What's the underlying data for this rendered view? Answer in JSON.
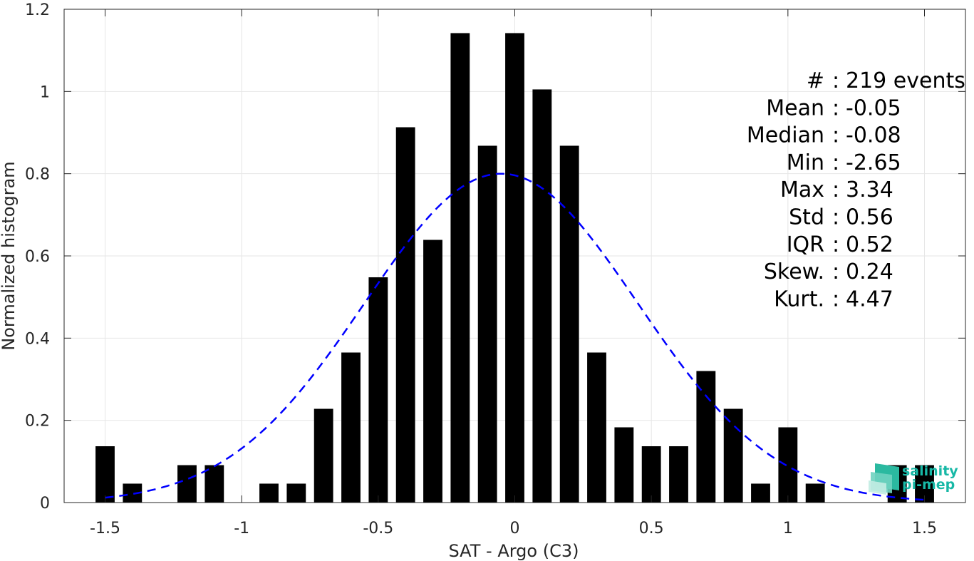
{
  "chart_data": {
    "type": "bar",
    "xlabel": "SAT - Argo (C3)",
    "ylabel": "Normalized histogram",
    "xlim": [
      -1.65,
      1.65
    ],
    "ylim": [
      0,
      1.2
    ],
    "xticks": [
      -1.5,
      -1,
      -0.5,
      0,
      0.5,
      1,
      1.5
    ],
    "xtick_labels": [
      "-1.5",
      "-1",
      "-0.5",
      "0",
      "0.5",
      "1",
      "1.5"
    ],
    "yticks": [
      0,
      0.2,
      0.4,
      0.6,
      0.8,
      1,
      1.2
    ],
    "ytick_labels": [
      "0",
      "0.2",
      "0.4",
      "0.6",
      "0.8",
      "1",
      "1.2"
    ],
    "grid": true,
    "bin_width": 0.07,
    "bins": [
      {
        "x": -1.5,
        "value": 0.137
      },
      {
        "x": -1.4,
        "value": 0.046
      },
      {
        "x": -1.2,
        "value": 0.091
      },
      {
        "x": -1.1,
        "value": 0.091
      },
      {
        "x": -0.9,
        "value": 0.046
      },
      {
        "x": -0.8,
        "value": 0.046
      },
      {
        "x": -0.7,
        "value": 0.228
      },
      {
        "x": -0.6,
        "value": 0.365
      },
      {
        "x": -0.5,
        "value": 0.548
      },
      {
        "x": -0.4,
        "value": 0.913
      },
      {
        "x": -0.3,
        "value": 0.639
      },
      {
        "x": -0.2,
        "value": 1.142
      },
      {
        "x": -0.1,
        "value": 0.868
      },
      {
        "x": 0.0,
        "value": 1.142
      },
      {
        "x": 0.1,
        "value": 1.005
      },
      {
        "x": 0.2,
        "value": 0.868
      },
      {
        "x": 0.3,
        "value": 0.365
      },
      {
        "x": 0.4,
        "value": 0.183
      },
      {
        "x": 0.5,
        "value": 0.137
      },
      {
        "x": 0.6,
        "value": 0.137
      },
      {
        "x": 0.7,
        "value": 0.32
      },
      {
        "x": 0.8,
        "value": 0.228
      },
      {
        "x": 0.9,
        "value": 0.046
      },
      {
        "x": 1.0,
        "value": 0.183
      },
      {
        "x": 1.1,
        "value": 0.046
      },
      {
        "x": 1.4,
        "value": 0.091
      },
      {
        "x": 1.5,
        "value": 0.091
      }
    ],
    "fit_curve": {
      "style": "dashed",
      "color": "#0000ff",
      "mean": -0.05,
      "std": 0.5,
      "peak": 0.8,
      "x_range": [
        -1.5,
        1.5
      ]
    },
    "bar_color": "#000000",
    "stats_lines": [
      "#  : 219 events",
      "Mean : -0.05",
      "Median : -0.08",
      "Min : -2.65",
      "Max : 3.34",
      "Std : 0.56",
      "IQR : 0.52",
      "Skew. : 0.24",
      "Kurt. : 4.47"
    ],
    "stats_placement": "top-right"
  },
  "logo": {
    "line1": "salinity",
    "line2": "pi-mep",
    "color": "#17b8a6"
  }
}
